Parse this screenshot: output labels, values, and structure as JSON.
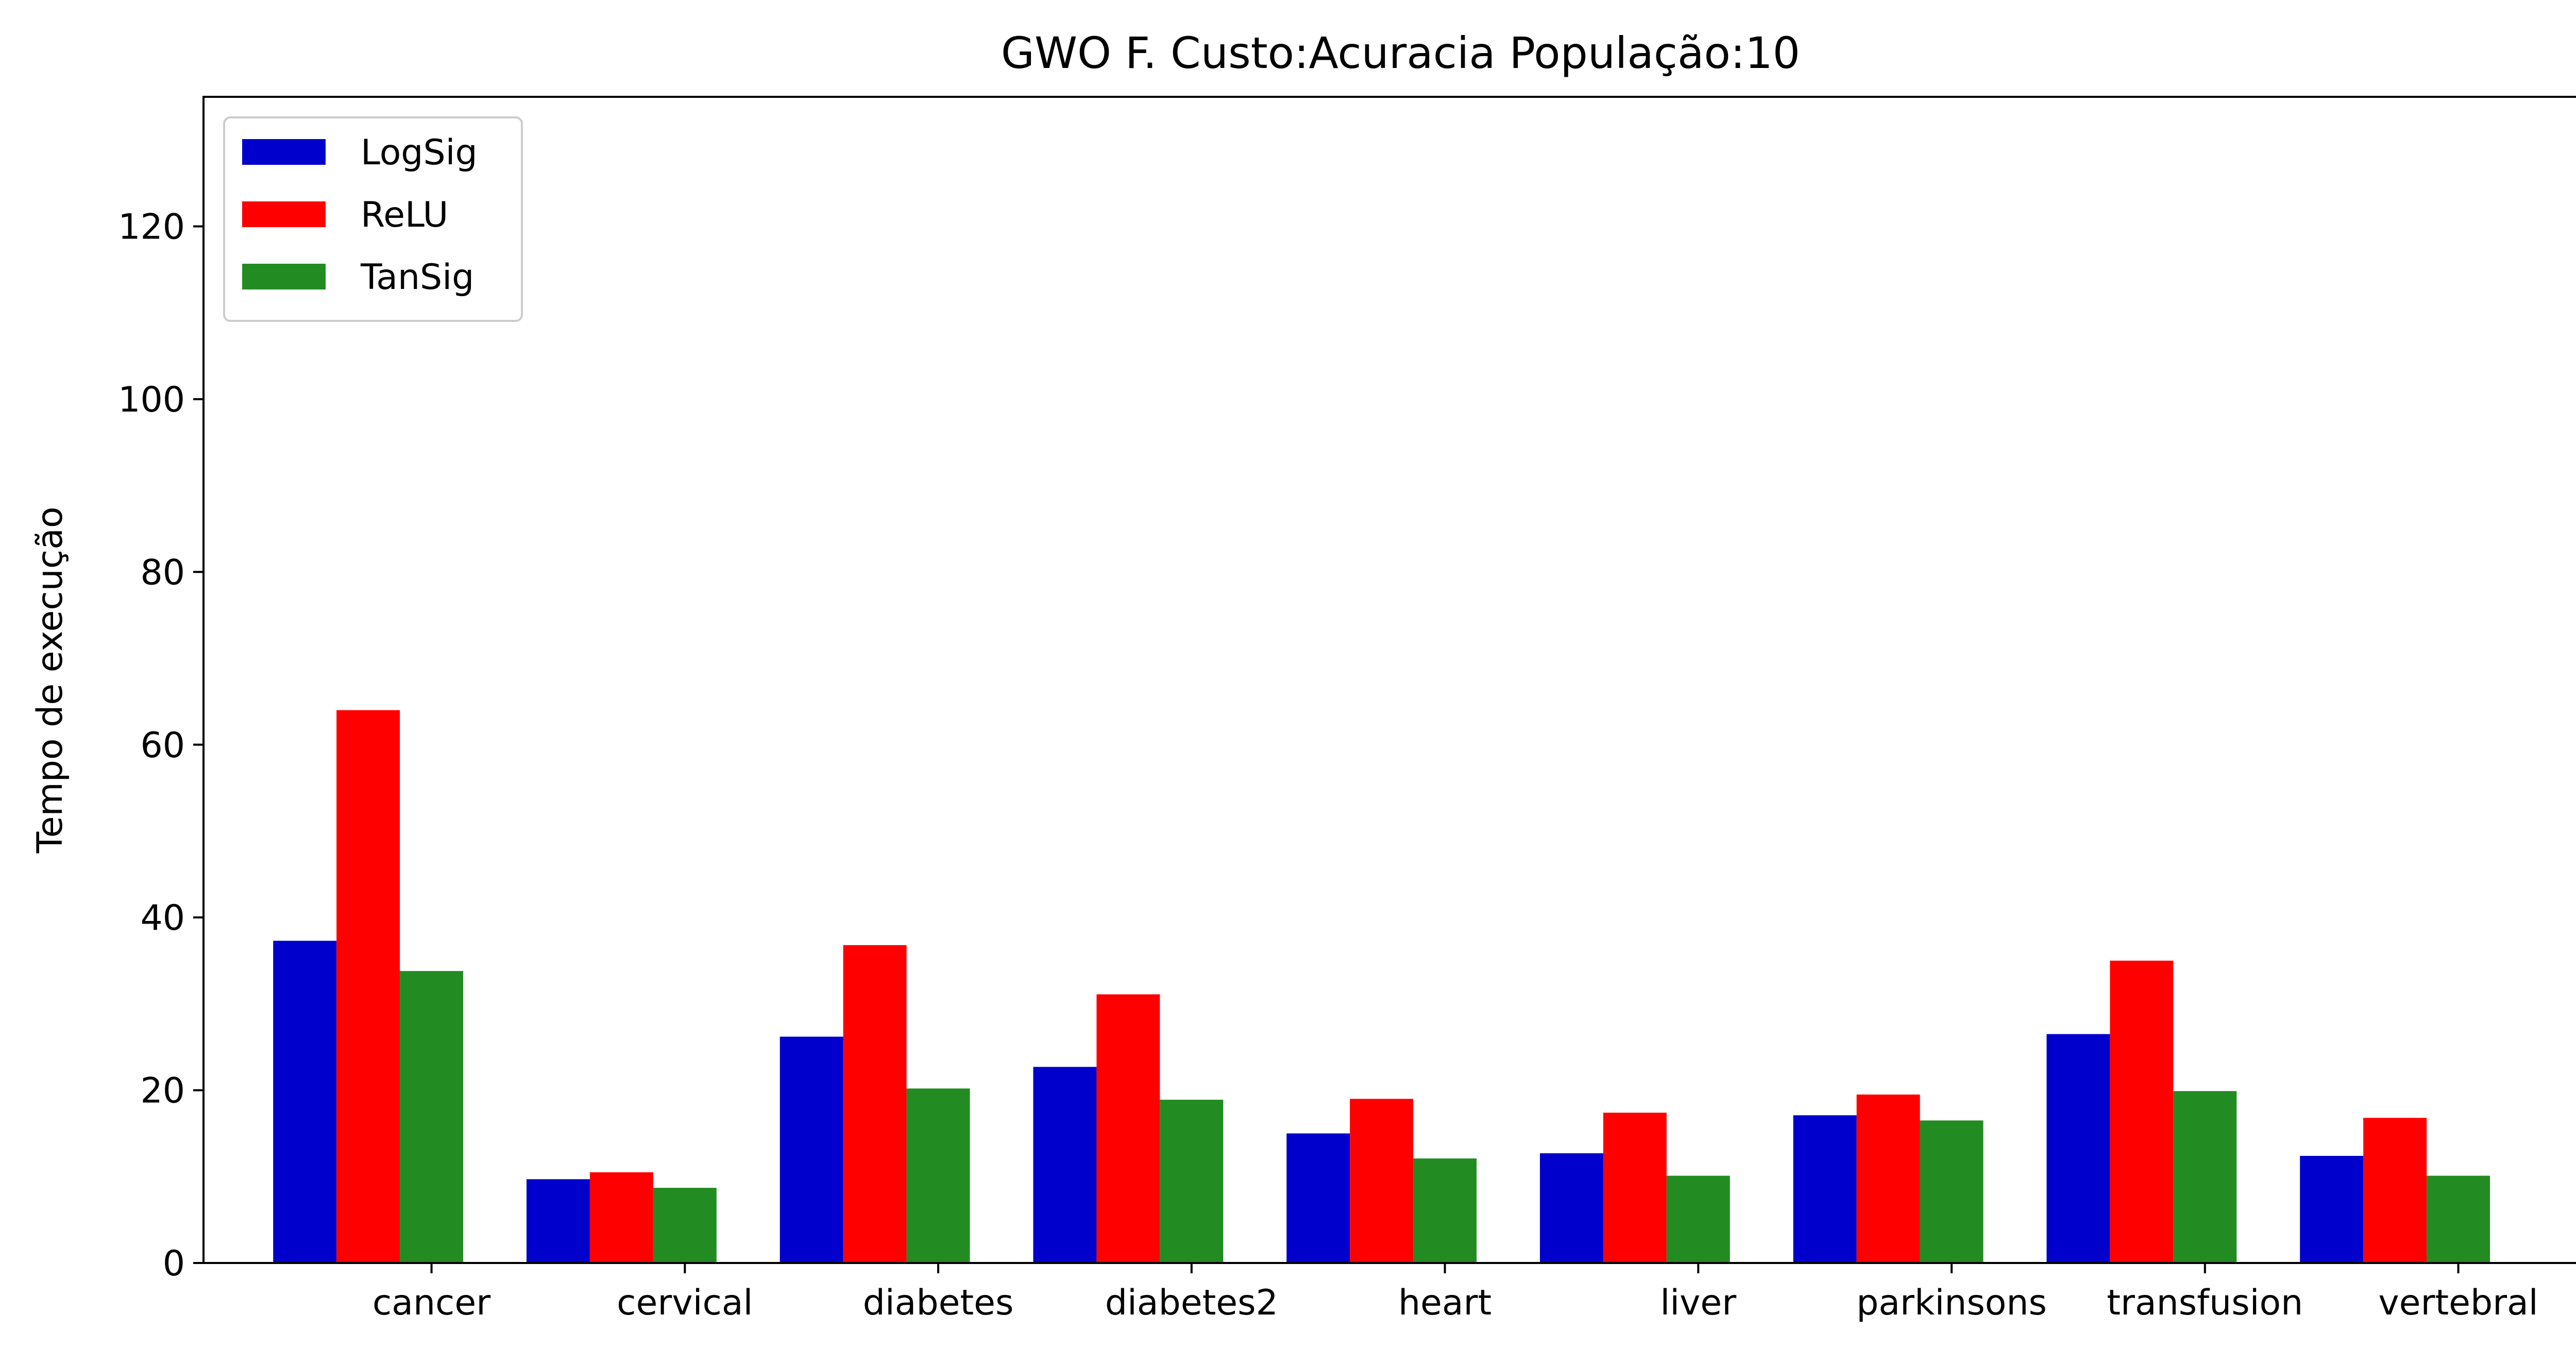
{
  "chart_data": {
    "type": "bar",
    "title": "GWO F. Custo:Acuracia População:10",
    "xlabel": "",
    "ylabel": "Tempo de execução",
    "ylim": [
      0,
      135
    ],
    "yticks": [
      "0",
      "20",
      "40",
      "60",
      "80",
      "100",
      "120"
    ],
    "grid": false,
    "legend_position": "top-left",
    "categories": [
      "cancer",
      "cervical",
      "diabetes",
      "diabetes2",
      "heart",
      "liver",
      "parkinsons",
      "transfusion",
      "vertebral"
    ],
    "series": [
      {
        "name": "LogSig",
        "color": "#0000cd",
        "values": [
          37.3,
          9.7,
          26.2,
          22.7,
          15.0,
          12.7,
          17.1,
          26.5,
          12.4
        ]
      },
      {
        "name": "ReLU",
        "color": "#ff0000",
        "values": [
          64.0,
          10.5,
          36.8,
          31.1,
          19.0,
          17.4,
          19.5,
          35.0,
          16.8
        ]
      },
      {
        "name": "TanSig",
        "color": "#228b22",
        "values": [
          33.8,
          8.7,
          20.2,
          18.9,
          12.1,
          10.1,
          16.5,
          19.9,
          10.1
        ]
      }
    ]
  }
}
